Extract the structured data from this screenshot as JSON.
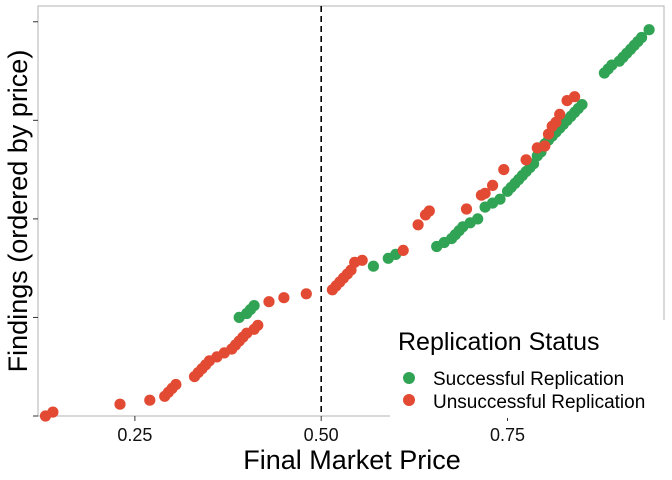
{
  "chart_data": {
    "type": "scatter",
    "title": "",
    "xlabel": "Final Market Price",
    "ylabel": "Findings (ordered by price)",
    "xlim": [
      0.12,
      0.96
    ],
    "ylim": [
      0,
      104
    ],
    "x_ticks": [
      0.25,
      0.5,
      0.75
    ],
    "x_tick_labels": [
      "0.25",
      "0.50",
      "0.75"
    ],
    "y_ticks": [
      0,
      25,
      50,
      75,
      100
    ],
    "y_tick_labels": [
      "",
      "",
      "",
      "",
      ""
    ],
    "grid": false,
    "legend": {
      "title": "Replication Status",
      "placement": "bottom-right",
      "entries": [
        "Successful Replication",
        "Unsuccessful Replication"
      ]
    },
    "reference_line": {
      "x": 0.5,
      "style": "dashed"
    },
    "series": [
      {
        "name": "Successful Replication",
        "color": "#31a354",
        "x": [
          0.39,
          0.4,
          0.405,
          0.41,
          0.57,
          0.59,
          0.6,
          0.655,
          0.665,
          0.675,
          0.68,
          0.685,
          0.69,
          0.7,
          0.71,
          0.72,
          0.73,
          0.74,
          0.75,
          0.755,
          0.76,
          0.765,
          0.77,
          0.775,
          0.78,
          0.785,
          0.79,
          0.795,
          0.8,
          0.805,
          0.81,
          0.815,
          0.82,
          0.825,
          0.83,
          0.835,
          0.84,
          0.845,
          0.85,
          0.88,
          0.885,
          0.89,
          0.9,
          0.905,
          0.91,
          0.915,
          0.92,
          0.925,
          0.93,
          0.94
        ],
        "y": [
          25,
          26,
          27,
          28,
          38,
          40,
          41,
          43,
          44,
          45,
          46,
          47,
          48,
          49,
          50,
          53,
          54,
          55,
          57,
          58,
          59,
          60,
          61,
          62,
          63,
          64,
          66,
          67,
          69,
          70,
          71,
          72,
          73,
          74,
          75,
          76,
          77,
          78,
          79,
          87,
          88,
          89,
          90,
          91,
          92,
          93,
          94,
          95,
          96,
          98
        ]
      },
      {
        "name": "Unsuccessful Replication",
        "color": "#e34a33",
        "x": [
          0.13,
          0.14,
          0.23,
          0.27,
          0.29,
          0.295,
          0.3,
          0.305,
          0.33,
          0.335,
          0.34,
          0.345,
          0.35,
          0.36,
          0.37,
          0.38,
          0.385,
          0.39,
          0.395,
          0.4,
          0.41,
          0.415,
          0.43,
          0.45,
          0.48,
          0.515,
          0.52,
          0.525,
          0.53,
          0.535,
          0.54,
          0.545,
          0.555,
          0.61,
          0.63,
          0.64,
          0.645,
          0.695,
          0.715,
          0.72,
          0.73,
          0.745,
          0.775,
          0.79,
          0.8,
          0.805,
          0.81,
          0.815,
          0.82,
          0.83,
          0.84
        ],
        "y": [
          0,
          1,
          3,
          4,
          5,
          6,
          7,
          8,
          10,
          11,
          12,
          13,
          14,
          15,
          16,
          17,
          18,
          19,
          20,
          21,
          22,
          23,
          29,
          30,
          31,
          32,
          33,
          34,
          35,
          36,
          37,
          39,
          39.5,
          42,
          48.5,
          51,
          52,
          52.5,
          56,
          56.5,
          58.5,
          62.5,
          65,
          68,
          68.5,
          71.5,
          73.5,
          74.5,
          76.5,
          80,
          81
        ]
      }
    ]
  }
}
